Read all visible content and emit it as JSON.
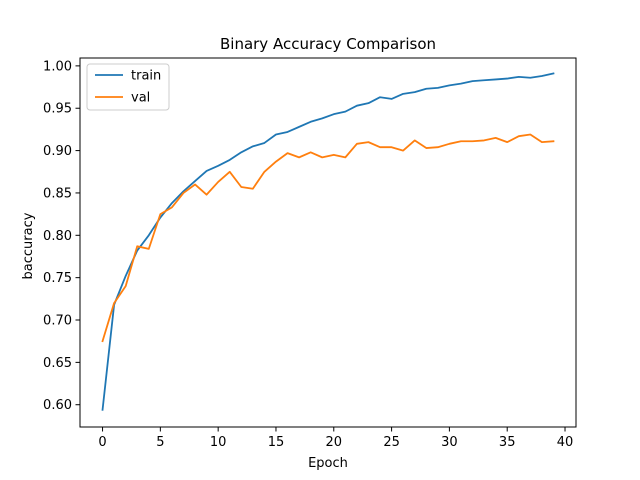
{
  "chart_data": {
    "type": "line",
    "title": "Binary Accuracy Comparison",
    "xlabel": "Epoch",
    "ylabel": "baccuracy",
    "xlim": [
      -1.95,
      40.95
    ],
    "ylim": [
      0.5737,
      1.0093
    ],
    "xticks": [
      0,
      5,
      10,
      15,
      20,
      25,
      30,
      35,
      40
    ],
    "xtick_labels": [
      "0",
      "5",
      "10",
      "15",
      "20",
      "25",
      "30",
      "35",
      "40"
    ],
    "yticks": [
      0.6,
      0.65,
      0.7,
      0.75,
      0.8,
      0.85,
      0.9,
      0.95,
      1.0
    ],
    "ytick_labels": [
      "0.60",
      "0.65",
      "0.70",
      "0.75",
      "0.80",
      "0.85",
      "0.90",
      "0.95",
      "1.00"
    ],
    "grid": false,
    "legend_position": "top-left",
    "x": [
      0,
      1,
      2,
      3,
      4,
      5,
      6,
      7,
      8,
      9,
      10,
      11,
      12,
      13,
      14,
      15,
      16,
      17,
      18,
      19,
      20,
      21,
      22,
      23,
      24,
      25,
      26,
      27,
      28,
      29,
      30,
      31,
      32,
      33,
      34,
      35,
      36,
      37,
      38,
      39
    ],
    "series": [
      {
        "name": "train",
        "color": "#1f77b4",
        "values": [
          0.594,
          0.718,
          0.752,
          0.782,
          0.8,
          0.821,
          0.838,
          0.852,
          0.864,
          0.876,
          0.882,
          0.889,
          0.898,
          0.905,
          0.909,
          0.919,
          0.922,
          0.928,
          0.934,
          0.938,
          0.943,
          0.946,
          0.953,
          0.956,
          0.963,
          0.961,
          0.967,
          0.969,
          0.973,
          0.974,
          0.977,
          0.979,
          0.982,
          0.983,
          0.984,
          0.985,
          0.987,
          0.986,
          0.988,
          0.991
        ]
      },
      {
        "name": "val",
        "color": "#ff7f0e",
        "values": [
          0.675,
          0.72,
          0.74,
          0.787,
          0.784,
          0.825,
          0.833,
          0.85,
          0.86,
          0.848,
          0.863,
          0.875,
          0.857,
          0.855,
          0.875,
          0.887,
          0.897,
          0.892,
          0.898,
          0.892,
          0.895,
          0.892,
          0.908,
          0.91,
          0.904,
          0.904,
          0.9,
          0.912,
          0.903,
          0.904,
          0.908,
          0.911,
          0.911,
          0.912,
          0.915,
          0.91,
          0.917,
          0.919,
          0.91,
          0.911
        ]
      }
    ]
  }
}
